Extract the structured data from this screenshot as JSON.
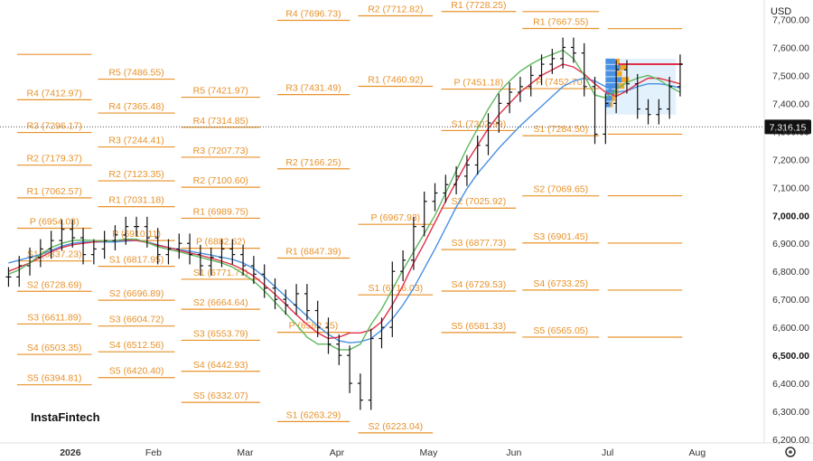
{
  "chart_data": {
    "type": "line",
    "subtype": "ohlc-bars-with-moving-averages-and-pivot-levels",
    "currency": "USD",
    "watermark": "InstaFintech",
    "last_price": 7316.15,
    "ylim": [
      6200,
      7750
    ],
    "y_ticks": [
      "6,200.00",
      "6,300.00",
      "6,400.00",
      "6,500.00",
      "6,600.00",
      "6,700.00",
      "6,800.00",
      "6,900.00",
      "7,000.00",
      "7,100.00",
      "7,200.00",
      "7,300.00",
      "7,400.00",
      "7,500.00",
      "7,600.00",
      "7,700.00"
    ],
    "y_tick_values": [
      6200,
      6300,
      6400,
      6500,
      6600,
      6700,
      6800,
      6900,
      7000,
      7100,
      7200,
      7300,
      7400,
      7500,
      7600,
      7700
    ],
    "y_bold_ticks": [
      "6,500.00",
      "7,000.00"
    ],
    "x_ticks": [
      "2026",
      "Feb",
      "Mar",
      "Apr",
      "May",
      "Jun",
      "Jul",
      "Aug"
    ],
    "x_bold_ticks": [
      "2026"
    ],
    "x_tick_week": [
      0.9,
      4.8,
      9.1,
      13.4,
      17.7,
      21.7,
      26.1,
      30.3
    ],
    "pivot_periods": [
      {
        "start": -1.6,
        "end": 1.9,
        "levels": [
          {
            "name": "R5",
            "value": 7575,
            "label": ""
          },
          {
            "name": "R4",
            "value": 7412.97,
            "label": "R4 (7412.97)"
          },
          {
            "name": "R3",
            "value": 7296.17,
            "label": "R3 (7296.17)"
          },
          {
            "name": "R2",
            "value": 7179.37,
            "label": "R2 (7179.37)"
          },
          {
            "name": "R1",
            "value": 7062.57,
            "label": "R1 (7062.57)"
          },
          {
            "name": "P",
            "value": 6954.03,
            "label": "P (6954.03)"
          },
          {
            "name": "S1",
            "value": 6837.23,
            "label": "S1 (6837.23)"
          },
          {
            "name": "S2",
            "value": 6728.69,
            "label": "S2 (6728.69)"
          },
          {
            "name": "S3",
            "value": 6611.89,
            "label": "S3 (6611.89)"
          },
          {
            "name": "S4",
            "value": 6503.35,
            "label": "S4 (6503.35)"
          },
          {
            "name": "S5",
            "value": 6394.81,
            "label": "S5 (6394.81)"
          }
        ]
      },
      {
        "start": 2.2,
        "end": 5.8,
        "levels": [
          {
            "name": "R5",
            "value": 7486.55,
            "label": "R5 (7486.55)"
          },
          {
            "name": "R4",
            "value": 7365.48,
            "label": "R4 (7365.48)"
          },
          {
            "name": "R3",
            "value": 7244.41,
            "label": "R3 (7244.41)"
          },
          {
            "name": "R2",
            "value": 7123.35,
            "label": "R2 (7123.35)"
          },
          {
            "name": "R1",
            "value": 7031.18,
            "label": "R1 (7031.18)"
          },
          {
            "name": "P",
            "value": 6910.11,
            "label": "P (6910.11)"
          },
          {
            "name": "S1",
            "value": 6817.95,
            "label": "S1 (6817.95)"
          },
          {
            "name": "S2",
            "value": 6696.89,
            "label": "S2 (6696.89)"
          },
          {
            "name": "S3",
            "value": 6604.72,
            "label": "S3 (6604.72)"
          },
          {
            "name": "S4",
            "value": 6512.56,
            "label": "S4 (6512.56)"
          },
          {
            "name": "S5",
            "value": 6420.4,
            "label": "S5 (6420.40)"
          }
        ]
      },
      {
        "start": 6.1,
        "end": 9.8,
        "levels": [
          {
            "name": "R5",
            "value": 7421.97,
            "label": "R5 (7421.97)"
          },
          {
            "name": "R4",
            "value": 7314.85,
            "label": "R4 (7314.85)"
          },
          {
            "name": "R3",
            "value": 7207.73,
            "label": "R3 (7207.73)"
          },
          {
            "name": "R2",
            "value": 7100.6,
            "label": "R2 (7100.60)"
          },
          {
            "name": "R1",
            "value": 6989.75,
            "label": "R1 (6989.75)"
          },
          {
            "name": "P",
            "value": 6882.62,
            "label": "P (6882.62)"
          },
          {
            "name": "S1",
            "value": 6771.77,
            "label": "S1 (6771.77)"
          },
          {
            "name": "S2",
            "value": 6664.64,
            "label": "S2 (6664.64)"
          },
          {
            "name": "S3",
            "value": 6553.79,
            "label": "S3 (6553.79)"
          },
          {
            "name": "S4",
            "value": 6442.93,
            "label": "S4 (6442.93)"
          },
          {
            "name": "S5",
            "value": 6332.07,
            "label": "S5 (6332.07)"
          }
        ]
      },
      {
        "start": 10.6,
        "end": 14.0,
        "levels": [
          {
            "name": "R4",
            "value": 7696.73,
            "label": "R4 (7696.73)"
          },
          {
            "name": "R3",
            "value": 7431.49,
            "label": "R3 (7431.49)"
          },
          {
            "name": "R2",
            "value": 7166.25,
            "label": "R2 (7166.25)"
          },
          {
            "name": "R1",
            "value": 6847.39,
            "label": "R1 (6847.39)"
          },
          {
            "name": "P",
            "value": 6582.15,
            "label": "P (6582.15)"
          },
          {
            "name": "S1",
            "value": 6263.29,
            "label": "S1 (6263.29)"
          }
        ]
      },
      {
        "start": 14.4,
        "end": 17.9,
        "levels": [
          {
            "name": "R2",
            "value": 7712.82,
            "label": "R2 (7712.82)"
          },
          {
            "name": "R1",
            "value": 7460.92,
            "label": "R1 (7460.92)"
          },
          {
            "name": "P",
            "value": 6967.93,
            "label": "P (6967.93)"
          },
          {
            "name": "S1",
            "value": 6716.03,
            "label": "S1 (6716.03)"
          },
          {
            "name": "S2",
            "value": 6223.04,
            "label": "S2 (6223.04)"
          }
        ]
      },
      {
        "start": 18.3,
        "end": 21.8,
        "levels": [
          {
            "name": "R1",
            "value": 7728.25,
            "label": "R1 (7728.25)"
          },
          {
            "name": "P",
            "value": 7451.18,
            "label": "P (7451.18)"
          },
          {
            "name": "S1",
            "value": 7302.99,
            "label": "S1 (7302.99)"
          },
          {
            "name": "S2",
            "value": 7025.92,
            "label": "S2 (7025.92)"
          },
          {
            "name": "S3",
            "value": 6877.73,
            "label": "S3 (6877.73)"
          },
          {
            "name": "S4",
            "value": 6729.53,
            "label": "S4 (6729.53)"
          },
          {
            "name": "S5",
            "value": 6581.33,
            "label": "S5 (6581.33)"
          }
        ]
      },
      {
        "start": 22.1,
        "end": 25.7,
        "levels": [
          {
            "name": "R2",
            "value": 7728,
            "label": ""
          },
          {
            "name": "R1",
            "value": 7667.55,
            "label": "R1 (7667.55)"
          },
          {
            "name": "P",
            "value": 7452.7,
            "label": "P (7452.70)"
          },
          {
            "name": "S1",
            "value": 7284.5,
            "label": "S1 (7284.50)"
          },
          {
            "name": "S2",
            "value": 7069.65,
            "label": "S2 (7069.65)"
          },
          {
            "name": "S3",
            "value": 6901.45,
            "label": "S3 (6901.45)"
          },
          {
            "name": "S4",
            "value": 6733.25,
            "label": "S4 (6733.25)"
          },
          {
            "name": "S5",
            "value": 6565.05,
            "label": "S5 (6565.05)"
          }
        ]
      },
      {
        "start": 26.1,
        "end": 29.6,
        "levels": [
          {
            "name": "R1",
            "value": 7667,
            "label": ""
          },
          {
            "name": "S1",
            "value": 7290,
            "label": ""
          },
          {
            "name": "S2",
            "value": 7070,
            "label": ""
          },
          {
            "name": "S3",
            "value": 6901,
            "label": ""
          },
          {
            "name": "S4",
            "value": 6733,
            "label": ""
          },
          {
            "name": "S5",
            "value": 6565,
            "label": ""
          }
        ]
      }
    ],
    "weeks": [
      -2,
      -1.5,
      -1,
      -0.5,
      0,
      0.5,
      1,
      1.5,
      2,
      2.5,
      3,
      3.5,
      4,
      4.5,
      5,
      5.5,
      6,
      6.5,
      7,
      7.5,
      8,
      8.5,
      9,
      9.5,
      10,
      10.5,
      11,
      11.5,
      12,
      12.5,
      13,
      13.5,
      14,
      14.5,
      15,
      15.5,
      16,
      16.5,
      17,
      17.5,
      18,
      18.5,
      19,
      19.5,
      20,
      20.5,
      21,
      21.5,
      22,
      22.5,
      23,
      23.5,
      24,
      24.5,
      25,
      25.5,
      26,
      26.5,
      27,
      27.5,
      28,
      28.5,
      29,
      29.5
    ],
    "series": [
      {
        "color": "#111111",
        "kind": "close-price",
        "values": [
          6780,
          6820,
          6850,
          6880,
          6910,
          6950,
          6920,
          6860,
          6880,
          6910,
          6930,
          6960,
          6960,
          6920,
          6860,
          6880,
          6900,
          6860,
          6820,
          6850,
          6880,
          6860,
          6820,
          6790,
          6740,
          6700,
          6680,
          6720,
          6660,
          6600,
          6540,
          6500,
          6400,
          6340,
          6560,
          6600,
          6800,
          6840,
          6960,
          7050,
          7080,
          7110,
          7140,
          7180,
          7250,
          7330,
          7400,
          7440,
          7460,
          7500,
          7540,
          7560,
          7600,
          7580,
          7460,
          7290,
          7400,
          7520,
          7470,
          7380,
          7360,
          7380,
          7460,
          7540
        ]
      },
      {
        "color": "#4a90e2",
        "kind": "moving-average",
        "values": [
          6830,
          6840,
          6850,
          6860,
          6875,
          6890,
          6900,
          6905,
          6905,
          6905,
          6905,
          6908,
          6910,
          6905,
          6895,
          6885,
          6878,
          6872,
          6865,
          6858,
          6850,
          6843,
          6830,
          6810,
          6780,
          6745,
          6710,
          6675,
          6640,
          6605,
          6575,
          6552,
          6545,
          6548,
          6560,
          6590,
          6630,
          6680,
          6740,
          6810,
          6880,
          6955,
          7030,
          7095,
          7150,
          7195,
          7240,
          7280,
          7320,
          7355,
          7390,
          7425,
          7460,
          7480,
          7490,
          7480,
          7460,
          7440,
          7445,
          7460,
          7470,
          7470,
          7465,
          7455
        ]
      },
      {
        "color": "#e0304a",
        "kind": "moving-average",
        "values": [
          6800,
          6815,
          6830,
          6850,
          6870,
          6885,
          6895,
          6900,
          6905,
          6908,
          6910,
          6912,
          6910,
          6903,
          6893,
          6885,
          6875,
          6866,
          6857,
          6847,
          6836,
          6824,
          6806,
          6783,
          6752,
          6718,
          6682,
          6645,
          6610,
          6580,
          6560,
          6565,
          6580,
          6580,
          6590,
          6620,
          6680,
          6750,
          6830,
          6900,
          6975,
          7050,
          7120,
          7190,
          7250,
          7310,
          7360,
          7400,
          7440,
          7470,
          7500,
          7520,
          7540,
          7530,
          7505,
          7470,
          7440,
          7425,
          7445,
          7470,
          7490,
          7490,
          7480,
          7470
        ]
      },
      {
        "color": "#5fb85f",
        "kind": "moving-average",
        "values": [
          6790,
          6805,
          6830,
          6860,
          6885,
          6900,
          6910,
          6912,
          6910,
          6908,
          6910,
          6915,
          6915,
          6903,
          6888,
          6878,
          6870,
          6860,
          6850,
          6840,
          6830,
          6815,
          6792,
          6765,
          6730,
          6690,
          6650,
          6610,
          6565,
          6540,
          6540,
          6520,
          6520,
          6540,
          6610,
          6665,
          6735,
          6805,
          6870,
          6935,
          7000,
          7080,
          7160,
          7240,
          7310,
          7380,
          7440,
          7480,
          7515,
          7540,
          7560,
          7575,
          7590,
          7560,
          7500,
          7430,
          7420,
          7450,
          7475,
          7490,
          7500,
          7485,
          7460,
          7440
        ]
      }
    ]
  }
}
